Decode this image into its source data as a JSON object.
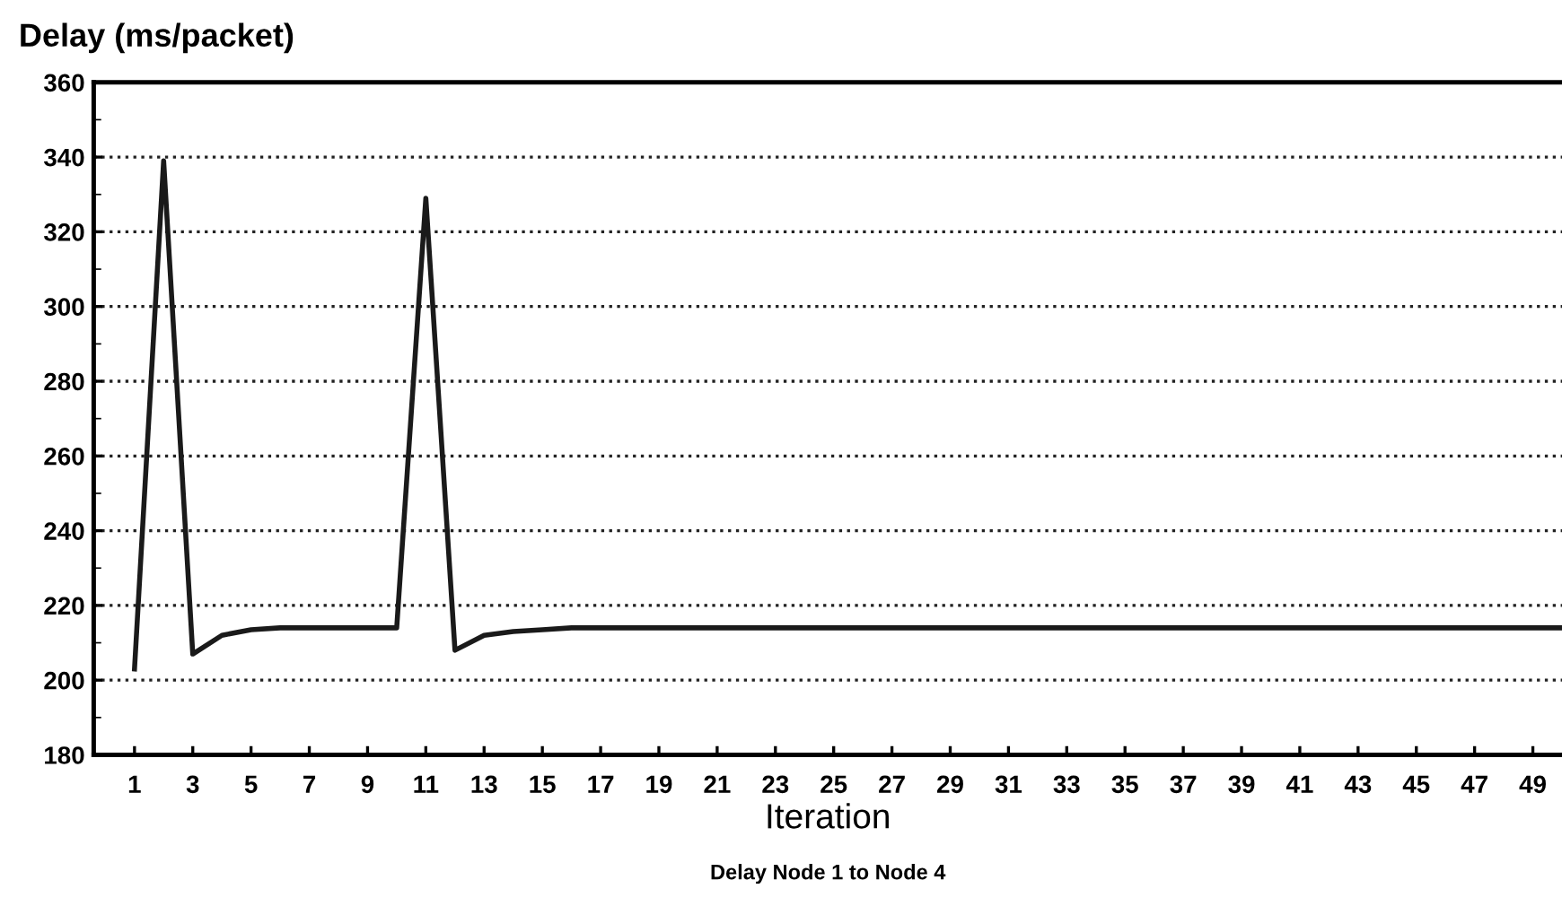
{
  "chart_data": {
    "type": "line",
    "ylabel": "Delay (ms/packet)",
    "xlabel": "Iteration",
    "annotations": [
      "Delay Node 1 to Node 4"
    ],
    "x": [
      1,
      2,
      3,
      4,
      5,
      6,
      7,
      8,
      9,
      10,
      11,
      12,
      13,
      14,
      15,
      16,
      17,
      18,
      19,
      20,
      21,
      22,
      23,
      24,
      25,
      26,
      27,
      28,
      29,
      30,
      31,
      32,
      33,
      34,
      35,
      36,
      37,
      38,
      39,
      40,
      41,
      42,
      43,
      44,
      45,
      46,
      47,
      48,
      49,
      50
    ],
    "series": [
      {
        "color": "#1a1a1a",
        "values": [
          203,
          339,
          207,
          212,
          213.5,
          214,
          214,
          214,
          214,
          214,
          329,
          208,
          212,
          213,
          213.5,
          214,
          214,
          214,
          214,
          214,
          214,
          214,
          214,
          214,
          214,
          214,
          214,
          214,
          214,
          214,
          214,
          214,
          214,
          214,
          214,
          214,
          214,
          214,
          214,
          214,
          214,
          214,
          214,
          214,
          214,
          214,
          214,
          214,
          214,
          214
        ]
      }
    ],
    "xlim": [
      -0.4,
      50
    ],
    "xticks": [
      1,
      3,
      5,
      7,
      9,
      11,
      13,
      15,
      17,
      19,
      21,
      23,
      25,
      27,
      29,
      31,
      33,
      35,
      37,
      39,
      41,
      43,
      45,
      47,
      49
    ],
    "ylim": [
      180,
      360
    ],
    "yticks": [
      180,
      200,
      220,
      240,
      260,
      280,
      300,
      320,
      340,
      360
    ],
    "grid": "y",
    "marker": "none",
    "line_style": "solid",
    "legend": false
  }
}
